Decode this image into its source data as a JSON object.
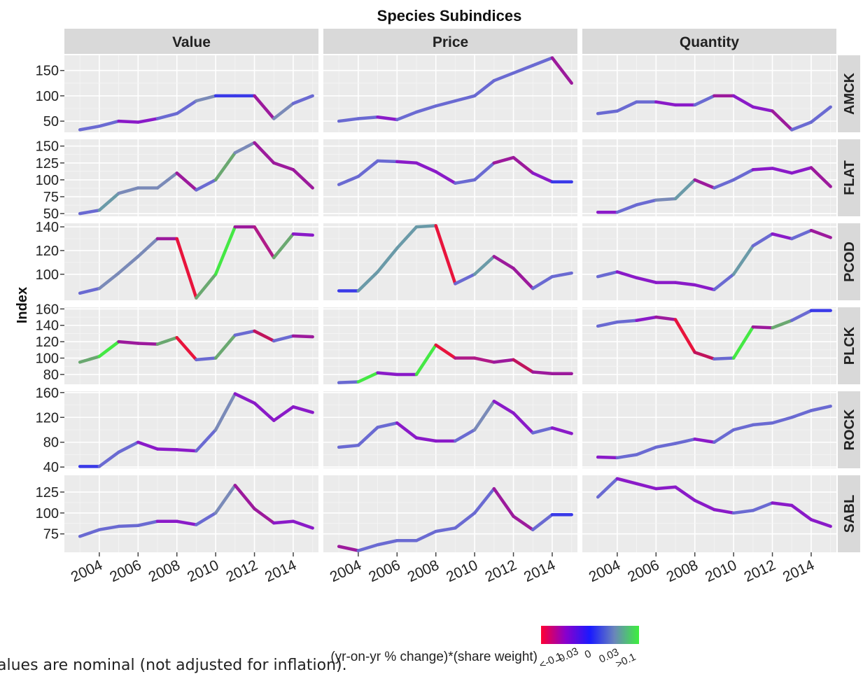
{
  "chart_data": {
    "type": "line",
    "title": "Species Subindices",
    "ylabel": "Index",
    "xlabel": "",
    "columns": [
      "Value",
      "Price",
      "Quantity"
    ],
    "rows": [
      "AMCK",
      "FLAT",
      "PCOD",
      "PLCK",
      "ROCK",
      "SABL"
    ],
    "x": [
      2003,
      2004,
      2005,
      2006,
      2007,
      2008,
      2009,
      2010,
      2011,
      2012,
      2013,
      2014
    ],
    "x_ticks": [
      "2004",
      "2006",
      "2008",
      "2010",
      "2012",
      "2014"
    ],
    "y_axes": {
      "AMCK": {
        "ylim": [
          28,
          180
        ],
        "ticks": [
          50,
          100,
          150
        ],
        "tick_labels": [
          "50",
          "100",
          "150"
        ]
      },
      "FLAT": {
        "ylim": [
          46,
          160
        ],
        "ticks": [
          50,
          75,
          100,
          125,
          150
        ],
        "tick_labels": [
          "50",
          "75",
          "100",
          "125",
          "150"
        ]
      },
      "PCOD": {
        "ylim": [
          78,
          143
        ],
        "ticks": [
          100,
          120,
          140
        ],
        "tick_labels": [
          "100",
          "120",
          "140"
        ]
      },
      "PLCK": {
        "ylim": [
          68,
          162
        ],
        "ticks": [
          80,
          100,
          120,
          140,
          160
        ],
        "tick_labels": [
          "80",
          "100",
          "120",
          "140",
          "160"
        ]
      },
      "ROCK": {
        "ylim": [
          38,
          162
        ],
        "ticks": [
          40,
          80,
          120,
          160
        ],
        "tick_labels": [
          "40",
          "80",
          "120",
          "160"
        ]
      },
      "SABL": {
        "ylim": [
          53,
          145
        ],
        "ticks": [
          75,
          100,
          125
        ],
        "tick_labels": [
          "75",
          "100",
          "125"
        ]
      }
    },
    "panels": [
      {
        "row": "AMCK",
        "col": "Value",
        "values": [
          33,
          40,
          50,
          48,
          55,
          65,
          90,
          100,
          100,
          100,
          55,
          85,
          100
        ],
        "x": [
          2003,
          2004,
          2005,
          2006,
          2007,
          2008,
          2009,
          2010,
          2011,
          2012,
          2013,
          2014,
          2015
        ],
        "colors": [
          "#6a6ad2",
          "#6a6ad2",
          "#8a1ac8",
          "#8a1ac8",
          "#6a6ad2",
          "#6a6ad2",
          "#7a8ab8",
          "#3a3ae8",
          "#3a3ae8",
          "#9c1a9c",
          "#7a8ab8",
          "#6a6ad2"
        ]
      },
      {
        "row": "AMCK",
        "col": "Price",
        "values": [
          50,
          55,
          58,
          53,
          68,
          80,
          90,
          100,
          130,
          145,
          160,
          175,
          125
        ],
        "x": [
          2003,
          2004,
          2005,
          2006,
          2007,
          2008,
          2009,
          2010,
          2011,
          2012,
          2013,
          2014,
          2015
        ],
        "colors": [
          "#6a6ad2",
          "#6a6ad2",
          "#8a1ac8",
          "#6a6ad2",
          "#6a6ad2",
          "#6a6ad2",
          "#6a6ad2",
          "#6a6ad2",
          "#6a6ad2",
          "#6a6ad2",
          "#6a6ad2",
          "#9c1a9c"
        ]
      },
      {
        "row": "AMCK",
        "col": "Quantity",
        "values": [
          65,
          70,
          88,
          88,
          82,
          82,
          100,
          100,
          78,
          70,
          33,
          48,
          78
        ],
        "x": [
          2003,
          2004,
          2005,
          2006,
          2007,
          2008,
          2009,
          2010,
          2011,
          2012,
          2013,
          2014,
          2015
        ],
        "colors": [
          "#6a6ad2",
          "#6a6ad2",
          "#6a6ad2",
          "#8a1ac8",
          "#8a1ac8",
          "#6a6ad2",
          "#9c1a9c",
          "#8a1ac8",
          "#8a1ac8",
          "#9c1a9c",
          "#6a6ad2",
          "#6a6ad2"
        ]
      },
      {
        "row": "FLAT",
        "col": "Value",
        "values": [
          50,
          55,
          80,
          88,
          88,
          110,
          85,
          100,
          140,
          155,
          125,
          115,
          88
        ],
        "x": [
          2003,
          2004,
          2005,
          2006,
          2007,
          2008,
          2009,
          2010,
          2011,
          2012,
          2013,
          2014,
          2015
        ],
        "colors": [
          "#6a6ad2",
          "#6a9aa8",
          "#7a8ab8",
          "#7a8ab8",
          "#7a8ab8",
          "#9c1a9c",
          "#6a6ad2",
          "#6aa870",
          "#7a8ab8",
          "#9c1a9c",
          "#9c1a9c",
          "#9c1a9c"
        ]
      },
      {
        "row": "FLAT",
        "col": "Price",
        "values": [
          93,
          105,
          128,
          127,
          125,
          112,
          95,
          100,
          125,
          133,
          110,
          97,
          97
        ],
        "x": [
          2003,
          2004,
          2005,
          2006,
          2007,
          2008,
          2009,
          2010,
          2011,
          2012,
          2013,
          2014,
          2015
        ],
        "colors": [
          "#6a6ad2",
          "#6a6ad2",
          "#6a6ad2",
          "#8a1ac8",
          "#8a1ac8",
          "#8a1ac8",
          "#6a6ad2",
          "#6a6ad2",
          "#9c1a9c",
          "#9c1a9c",
          "#8a1ac8",
          "#3a3ae8"
        ]
      },
      {
        "row": "FLAT",
        "col": "Quantity",
        "values": [
          52,
          52,
          63,
          70,
          72,
          100,
          88,
          100,
          115,
          117,
          110,
          118,
          90
        ],
        "x": [
          2003,
          2004,
          2005,
          2006,
          2007,
          2008,
          2009,
          2010,
          2011,
          2012,
          2013,
          2014,
          2015
        ],
        "colors": [
          "#8a1ac8",
          "#6a6ad2",
          "#6a6ad2",
          "#7a8ab8",
          "#6a9aa8",
          "#9c1a9c",
          "#6a6ad2",
          "#6a6ad2",
          "#8a1ac8",
          "#8a1ac8",
          "#8a1ac8",
          "#9c1a9c"
        ]
      },
      {
        "row": "PCOD",
        "col": "Value",
        "values": [
          84,
          88,
          101,
          115,
          130,
          130,
          80,
          100,
          140,
          140,
          114,
          134,
          133
        ],
        "x": [
          2003,
          2004,
          2005,
          2006,
          2007,
          2008,
          2009,
          2010,
          2011,
          2012,
          2013,
          2014,
          2015
        ],
        "colors": [
          "#6a6ad2",
          "#7a8ab8",
          "#7a8ab8",
          "#7a8ab8",
          "#9c1a9c",
          "#e8143c",
          "#6aa870",
          "#44e844",
          "#9c1a9c",
          "#b01a88",
          "#6aa870",
          "#8a1ac8"
        ]
      },
      {
        "row": "PCOD",
        "col": "Price",
        "values": [
          86,
          86,
          102,
          122,
          140,
          141,
          92,
          100,
          115,
          105,
          88,
          98,
          101
        ],
        "x": [
          2003,
          2004,
          2005,
          2006,
          2007,
          2008,
          2009,
          2010,
          2011,
          2012,
          2013,
          2014,
          2015
        ],
        "colors": [
          "#3a3ae8",
          "#6a9aa8",
          "#6a9aa8",
          "#6a9aa8",
          "#6a9aa8",
          "#e8143c",
          "#6a6ad2",
          "#6a9aa8",
          "#9c1a9c",
          "#9c1a9c",
          "#6a6ad2",
          "#6a6ad2"
        ]
      },
      {
        "row": "PCOD",
        "col": "Quantity",
        "values": [
          98,
          102,
          97,
          93,
          93,
          91,
          87,
          100,
          124,
          134,
          130,
          137,
          131
        ],
        "x": [
          2003,
          2004,
          2005,
          2006,
          2007,
          2008,
          2009,
          2010,
          2011,
          2012,
          2013,
          2014,
          2015
        ],
        "colors": [
          "#6a6ad2",
          "#8a1ac8",
          "#8a1ac8",
          "#8a1ac8",
          "#8a1ac8",
          "#8a1ac8",
          "#6a6ad2",
          "#6a9aa8",
          "#6a6ad2",
          "#8a1ac8",
          "#6a6ad2",
          "#9c1a9c"
        ]
      },
      {
        "row": "PLCK",
        "col": "Value",
        "values": [
          95,
          102,
          120,
          118,
          117,
          125,
          98,
          100,
          128,
          133,
          121,
          127,
          126
        ],
        "x": [
          2003,
          2004,
          2005,
          2006,
          2007,
          2008,
          2009,
          2010,
          2011,
          2012,
          2013,
          2014,
          2015
        ],
        "colors": [
          "#6aa870",
          "#44e844",
          "#9c1a9c",
          "#9c1a9c",
          "#6aa870",
          "#e8143c",
          "#6a6ad2",
          "#6aa870",
          "#6a6ad2",
          "#c0145c",
          "#6a6ad2",
          "#9c1a9c"
        ]
      },
      {
        "row": "PLCK",
        "col": "Price",
        "values": [
          70,
          71,
          82,
          80,
          80,
          116,
          100,
          100,
          95,
          98,
          83,
          81,
          81
        ],
        "x": [
          2003,
          2004,
          2005,
          2006,
          2007,
          2008,
          2009,
          2010,
          2011,
          2012,
          2013,
          2014,
          2015
        ],
        "colors": [
          "#6a6ad2",
          "#44e844",
          "#8a1ac8",
          "#8a1ac8",
          "#44e844",
          "#e8143c",
          "#b01a88",
          "#b01a88",
          "#9c1a9c",
          "#c0145c",
          "#9c1a9c",
          "#9c1a9c"
        ]
      },
      {
        "row": "PLCK",
        "col": "Quantity",
        "values": [
          139,
          144,
          146,
          150,
          147,
          107,
          99,
          100,
          138,
          137,
          146,
          158,
          158
        ],
        "x": [
          2003,
          2004,
          2005,
          2006,
          2007,
          2008,
          2009,
          2010,
          2011,
          2012,
          2013,
          2014,
          2015
        ],
        "colors": [
          "#6a6ad2",
          "#6a6ad2",
          "#8a1ac8",
          "#9c1a9c",
          "#e8143c",
          "#c0145c",
          "#6a6ad2",
          "#44e844",
          "#9c1a9c",
          "#6aa870",
          "#6a6ad2",
          "#3a3ae8"
        ]
      },
      {
        "row": "ROCK",
        "col": "Value",
        "values": [
          41,
          41,
          64,
          80,
          69,
          68,
          66,
          100,
          158,
          143,
          115,
          137,
          128
        ],
        "x": [
          2003,
          2004,
          2005,
          2006,
          2007,
          2008,
          2009,
          2010,
          2011,
          2012,
          2013,
          2014,
          2015
        ],
        "colors": [
          "#3a3ae8",
          "#6a6ad2",
          "#6a6ad2",
          "#8a1ac8",
          "#8a1ac8",
          "#8a1ac8",
          "#6a6ad2",
          "#7a8ab8",
          "#8a1ac8",
          "#8a1ac8",
          "#8a1ac8",
          "#8a1ac8"
        ]
      },
      {
        "row": "ROCK",
        "col": "Price",
        "values": [
          72,
          75,
          104,
          111,
          87,
          82,
          82,
          100,
          146,
          127,
          95,
          103,
          94
        ],
        "x": [
          2003,
          2004,
          2005,
          2006,
          2007,
          2008,
          2009,
          2010,
          2011,
          2012,
          2013,
          2014,
          2015
        ],
        "colors": [
          "#6a6ad2",
          "#6a6ad2",
          "#6a6ad2",
          "#8a1ac8",
          "#8a1ac8",
          "#8a1ac8",
          "#6a6ad2",
          "#7a8ab8",
          "#8a1ac8",
          "#8a1ac8",
          "#6a6ad2",
          "#8a1ac8"
        ]
      },
      {
        "row": "ROCK",
        "col": "Quantity",
        "values": [
          56,
          55,
          60,
          72,
          78,
          85,
          80,
          100,
          108,
          111,
          120,
          131,
          138
        ],
        "x": [
          2003,
          2004,
          2005,
          2006,
          2007,
          2008,
          2009,
          2010,
          2011,
          2012,
          2013,
          2014,
          2015
        ],
        "colors": [
          "#8a1ac8",
          "#6a6ad2",
          "#6a6ad2",
          "#6a6ad2",
          "#6a6ad2",
          "#8a1ac8",
          "#6a6ad2",
          "#6a6ad2",
          "#6a6ad2",
          "#6a6ad2",
          "#6a6ad2",
          "#6a6ad2"
        ]
      },
      {
        "row": "SABL",
        "col": "Value",
        "values": [
          72,
          80,
          84,
          85,
          90,
          90,
          86,
          100,
          133,
          105,
          88,
          90,
          82
        ],
        "x": [
          2003,
          2004,
          2005,
          2006,
          2007,
          2008,
          2009,
          2010,
          2011,
          2012,
          2013,
          2014,
          2015
        ],
        "colors": [
          "#6a6ad2",
          "#6a6ad2",
          "#6a6ad2",
          "#6a6ad2",
          "#8a1ac8",
          "#8a1ac8",
          "#6a6ad2",
          "#7a8ab8",
          "#9c1a9c",
          "#9c1a9c",
          "#8a1ac8",
          "#8a1ac8"
        ]
      },
      {
        "row": "SABL",
        "col": "Price",
        "values": [
          60,
          55,
          62,
          67,
          67,
          78,
          82,
          100,
          129,
          96,
          80,
          98,
          98
        ],
        "x": [
          2003,
          2004,
          2005,
          2006,
          2007,
          2008,
          2009,
          2010,
          2011,
          2012,
          2013,
          2014,
          2015
        ],
        "colors": [
          "#9c1a9c",
          "#6a6ad2",
          "#6a6ad2",
          "#6a6ad2",
          "#6a6ad2",
          "#6a6ad2",
          "#6a6ad2",
          "#6a6ad2",
          "#9c1a9c",
          "#9c1a9c",
          "#6a6ad2",
          "#3a3ae8"
        ]
      },
      {
        "row": "SABL",
        "col": "Quantity",
        "values": [
          119,
          141,
          135,
          129,
          131,
          115,
          104,
          100,
          103,
          112,
          109,
          92,
          84
        ],
        "x": [
          2003,
          2004,
          2005,
          2006,
          2007,
          2008,
          2009,
          2010,
          2011,
          2012,
          2013,
          2014,
          2015
        ],
        "colors": [
          "#6a6ad2",
          "#8a1ac8",
          "#8a1ac8",
          "#8a1ac8",
          "#8a1ac8",
          "#8a1ac8",
          "#8a1ac8",
          "#6a6ad2",
          "#6a6ad2",
          "#8a1ac8",
          "#8a1ac8",
          "#8a1ac8"
        ]
      }
    ],
    "legend": {
      "title": "(yr-on-yr % change)*(share weight)",
      "labels": [
        "<-0.1",
        "-0.03",
        "0",
        "0.03",
        ">0.1"
      ],
      "gradient": [
        "#ff0033",
        "#8a00cc",
        "#1a1aff",
        "#6a86ba",
        "#3cf03c"
      ],
      "position": "bottom"
    },
    "grid": true,
    "panel_background": "#ebebeb",
    "strip_background": "#d9d9d9"
  },
  "footnote": "alues are nominal (not adjusted for inflation)."
}
